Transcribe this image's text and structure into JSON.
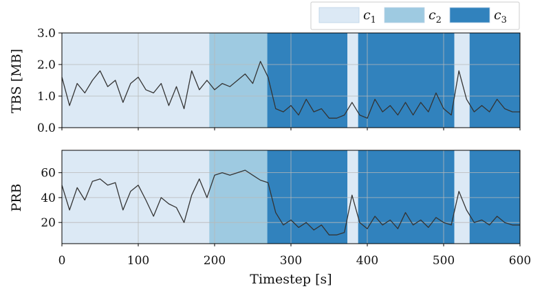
{
  "chart_data": {
    "type": "line",
    "xlabel": "Timestep [s]",
    "xlim": [
      0,
      600
    ],
    "xticks": [
      "0",
      "100",
      "200",
      "300",
      "400",
      "500",
      "600"
    ],
    "legend": {
      "placement": "top-right",
      "entries": [
        {
          "label": "c1",
          "base": "c",
          "sub": "1",
          "color": "#dce9f5"
        },
        {
          "label": "c2",
          "base": "c",
          "sub": "2",
          "color": "#9ecae1"
        },
        {
          "label": "c3",
          "base": "c",
          "sub": "3",
          "color": "#3182bd"
        }
      ]
    },
    "regions": [
      {
        "class": "c1",
        "x0": 0,
        "x1": 193
      },
      {
        "class": "c2",
        "x0": 193,
        "x1": 269
      },
      {
        "class": "c3",
        "x0": 269,
        "x1": 374
      },
      {
        "class": "c1",
        "x0": 374,
        "x1": 388
      },
      {
        "class": "c3",
        "x0": 388,
        "x1": 514
      },
      {
        "class": "c1",
        "x0": 514,
        "x1": 534
      },
      {
        "class": "c3",
        "x0": 534,
        "x1": 600
      }
    ],
    "panels": [
      {
        "ylabel": "TBS [MB]",
        "ylim": [
          0,
          3
        ],
        "yticks": [
          "0.0",
          "1.0",
          "2.0",
          "3.0"
        ],
        "ytick_values": [
          0,
          1,
          2,
          3
        ],
        "grid": true,
        "series": {
          "x": [
            0,
            10,
            20,
            30,
            40,
            50,
            60,
            70,
            80,
            90,
            100,
            110,
            120,
            130,
            140,
            150,
            160,
            170,
            180,
            190,
            200,
            210,
            220,
            230,
            240,
            250,
            260,
            270,
            280,
            290,
            300,
            310,
            320,
            330,
            340,
            350,
            360,
            370,
            380,
            390,
            400,
            410,
            420,
            430,
            440,
            450,
            460,
            470,
            480,
            490,
            500,
            510,
            520,
            530,
            540,
            550,
            560,
            570,
            580,
            590,
            600
          ],
          "values": [
            1.6,
            0.7,
            1.4,
            1.1,
            1.5,
            1.8,
            1.3,
            1.5,
            0.8,
            1.4,
            1.6,
            1.2,
            1.1,
            1.4,
            0.7,
            1.3,
            0.6,
            1.8,
            1.2,
            1.5,
            1.2,
            1.4,
            1.3,
            1.5,
            1.7,
            1.4,
            2.1,
            1.6,
            0.6,
            0.5,
            0.7,
            0.4,
            0.9,
            0.5,
            0.6,
            0.3,
            0.3,
            0.4,
            0.8,
            0.4,
            0.3,
            0.9,
            0.5,
            0.7,
            0.4,
            0.8,
            0.4,
            0.8,
            0.5,
            1.1,
            0.6,
            0.4,
            1.8,
            0.9,
            0.5,
            0.7,
            0.5,
            0.9,
            0.6,
            0.5,
            0.5
          ]
        }
      },
      {
        "ylabel": "PRB",
        "ylim": [
          3,
          78
        ],
        "yticks": [
          "20",
          "40",
          "60"
        ],
        "ytick_values": [
          20,
          40,
          60
        ],
        "grid": true,
        "series": {
          "x": [
            0,
            10,
            20,
            30,
            40,
            50,
            60,
            70,
            80,
            90,
            100,
            110,
            120,
            130,
            140,
            150,
            160,
            170,
            180,
            190,
            200,
            210,
            220,
            230,
            240,
            250,
            260,
            270,
            280,
            290,
            300,
            310,
            320,
            330,
            340,
            350,
            360,
            370,
            380,
            390,
            400,
            410,
            420,
            430,
            440,
            450,
            460,
            470,
            480,
            490,
            500,
            510,
            520,
            530,
            540,
            550,
            560,
            570,
            580,
            590,
            600
          ],
          "values": [
            50,
            30,
            48,
            38,
            53,
            55,
            50,
            52,
            30,
            45,
            50,
            38,
            25,
            40,
            35,
            32,
            20,
            42,
            55,
            40,
            58,
            60,
            58,
            60,
            62,
            58,
            54,
            52,
            28,
            18,
            22,
            16,
            20,
            14,
            18,
            10,
            10,
            12,
            42,
            20,
            15,
            25,
            18,
            22,
            15,
            28,
            18,
            22,
            16,
            24,
            20,
            18,
            45,
            30,
            20,
            22,
            18,
            25,
            20,
            18,
            18
          ]
        }
      }
    ]
  }
}
